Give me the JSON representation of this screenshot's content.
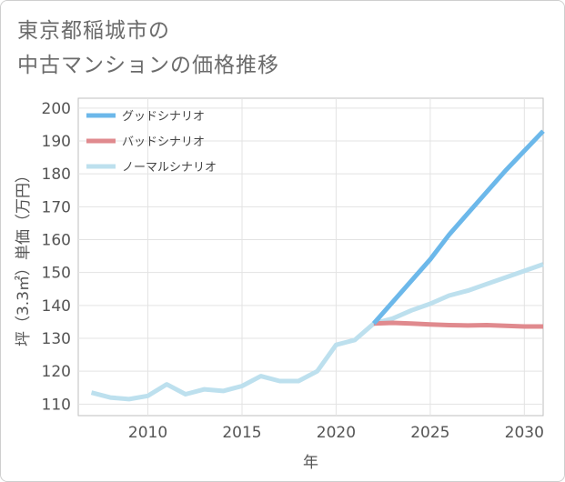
{
  "title_lines": [
    "東京都稲城市の",
    "中古マンションの価格推移"
  ],
  "chart_data": {
    "type": "line",
    "xlabel": "年",
    "ylabel": "坪（3.3㎡）単価（万円）",
    "xlim": [
      2006.3,
      2031
    ],
    "ylim": [
      106.5,
      203
    ],
    "x_ticks": [
      2010,
      2015,
      2020,
      2025,
      2030
    ],
    "y_ticks": [
      110,
      120,
      130,
      140,
      150,
      160,
      170,
      180,
      190,
      200
    ],
    "grid": true,
    "legend_position": "top-left",
    "series": [
      {
        "name": "グッドシナリオ",
        "color": "#6cb8ea",
        "x": [
          2022,
          2023,
          2024,
          2025,
          2026,
          2027,
          2028,
          2029,
          2030,
          2031
        ],
        "y": [
          134.5,
          141.0,
          147.5,
          154.0,
          161.5,
          168.0,
          174.5,
          181.0,
          187.0,
          193.0
        ]
      },
      {
        "name": "バッドシナリオ",
        "color": "#e08a8e",
        "x": [
          2022,
          2023,
          2024,
          2025,
          2026,
          2027,
          2028,
          2029,
          2030,
          2031
        ],
        "y": [
          134.5,
          134.7,
          134.5,
          134.2,
          134.0,
          133.9,
          134.0,
          133.8,
          133.6,
          133.6
        ]
      },
      {
        "name": "ノーマルシナリオ",
        "color": "#bde0ee",
        "x": [
          2007,
          2008,
          2009,
          2010,
          2011,
          2012,
          2013,
          2014,
          2015,
          2016,
          2017,
          2018,
          2019,
          2020,
          2021,
          2022,
          2023,
          2024,
          2025,
          2026,
          2027,
          2028,
          2029,
          2030,
          2031
        ],
        "y": [
          113.5,
          112.0,
          111.5,
          112.5,
          116.0,
          113.0,
          114.5,
          114.0,
          115.5,
          118.5,
          117.0,
          117.0,
          120.0,
          128.0,
          129.5,
          134.5,
          136.0,
          138.5,
          140.5,
          143.0,
          144.5,
          146.5,
          148.5,
          150.5,
          152.5
        ]
      }
    ]
  }
}
